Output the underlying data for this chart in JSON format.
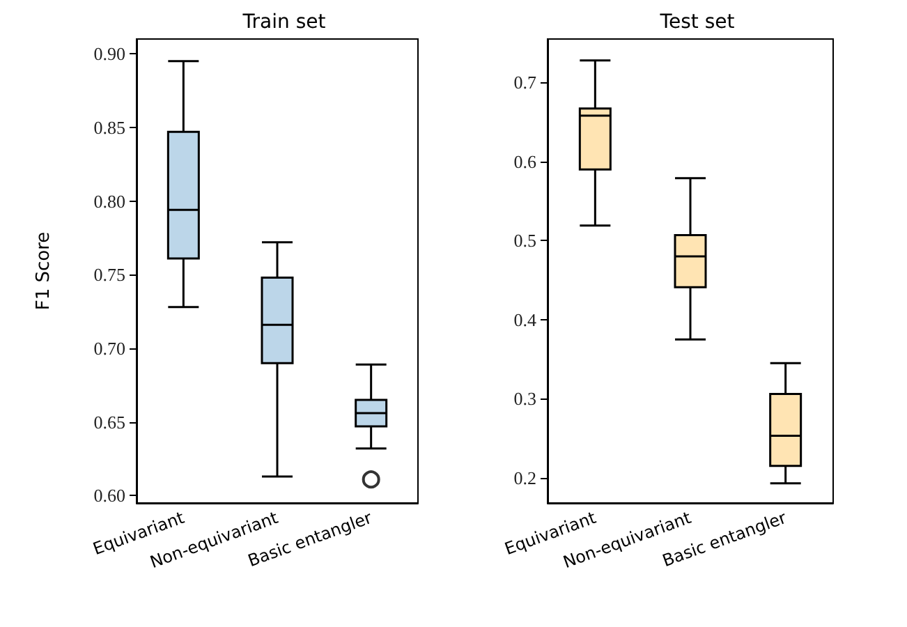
{
  "chart_data": [
    {
      "type": "box",
      "title": "Train set",
      "ylabel": "F1 Score",
      "categories": [
        "Equivariant",
        "Non-equivariant",
        "Basic entangler"
      ],
      "color": "#bcd6e9",
      "grid": false,
      "ylim": [
        0.595,
        0.91
      ],
      "yticks": [
        {
          "value": 0.6,
          "label": "0.60"
        },
        {
          "value": 0.65,
          "label": "0.65"
        },
        {
          "value": 0.7,
          "label": "0.70"
        },
        {
          "value": 0.75,
          "label": "0.75"
        },
        {
          "value": 0.8,
          "label": "0.80"
        },
        {
          "value": 0.85,
          "label": "0.85"
        },
        {
          "value": 0.9,
          "label": "0.90"
        }
      ],
      "boxes": [
        {
          "low": 0.728,
          "q1": 0.761,
          "median": 0.794,
          "q3": 0.847,
          "high": 0.895
        },
        {
          "low": 0.613,
          "q1": 0.69,
          "median": 0.716,
          "q3": 0.748,
          "high": 0.772
        },
        {
          "low": 0.632,
          "q1": 0.647,
          "median": 0.656,
          "q3": 0.665,
          "high": 0.689,
          "outliers": [
            0.611
          ]
        }
      ]
    },
    {
      "type": "box",
      "title": "Test set",
      "categories": [
        "Equivariant",
        "Non-equivariant",
        "Basic entangler"
      ],
      "color": "#ffe4b3",
      "grid": false,
      "ylim": [
        0.168,
        0.755
      ],
      "yticks": [
        {
          "value": 0.2,
          "label": "0.2"
        },
        {
          "value": 0.3,
          "label": "0.3"
        },
        {
          "value": 0.4,
          "label": "0.4"
        },
        {
          "value": 0.5,
          "label": "0.5"
        },
        {
          "value": 0.6,
          "label": "0.6"
        },
        {
          "value": 0.7,
          "label": "0.7"
        }
      ],
      "boxes": [
        {
          "low": 0.519,
          "q1": 0.59,
          "median": 0.658,
          "q3": 0.667,
          "high": 0.728
        },
        {
          "low": 0.375,
          "q1": 0.441,
          "median": 0.48,
          "q3": 0.507,
          "high": 0.579
        },
        {
          "low": 0.193,
          "q1": 0.215,
          "median": 0.253,
          "q3": 0.306,
          "high": 0.345
        }
      ]
    }
  ]
}
